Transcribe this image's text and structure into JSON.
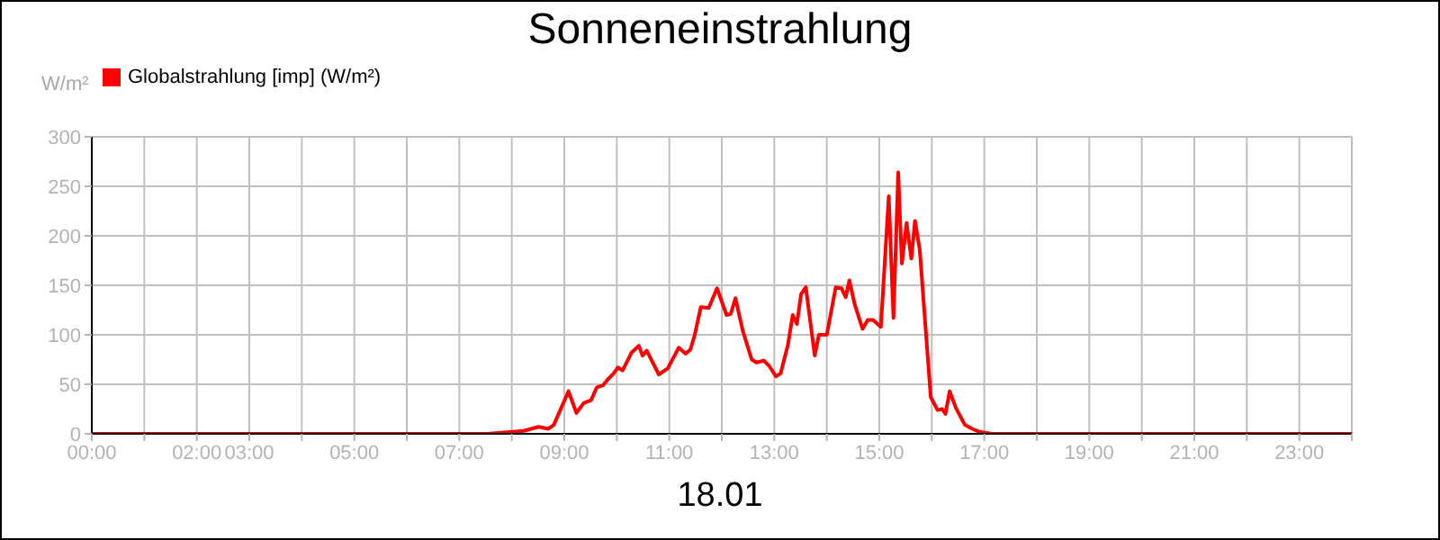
{
  "chart_data": {
    "type": "line",
    "title": "Sonneneinstrahlung",
    "xlabel": "18.01",
    "ylabel": "W/m²",
    "x": [
      0,
      7.54,
      8.23,
      8.51,
      8.69,
      8.8,
      9.08,
      9.23,
      9.37,
      9.51,
      9.62,
      9.74,
      9.83,
      9.94,
      10.02,
      10.11,
      10.28,
      10.42,
      10.49,
      10.57,
      10.8,
      10.97,
      11.18,
      11.31,
      11.4,
      11.48,
      11.6,
      11.75,
      11.91,
      12.09,
      12.17,
      12.26,
      12.4,
      12.57,
      12.66,
      12.8,
      12.91,
      13.03,
      13.12,
      13.26,
      13.35,
      13.43,
      13.51,
      13.6,
      13.77,
      13.85,
      14.0,
      14.17,
      14.28,
      14.36,
      14.43,
      14.53,
      14.68,
      14.78,
      14.88,
      15.03,
      15.18,
      15.27,
      15.36,
      15.43,
      15.52,
      15.61,
      15.68,
      15.77,
      15.98,
      16.11,
      16.2,
      16.26,
      16.34,
      16.46,
      16.63,
      16.77,
      16.91,
      17.14,
      24
    ],
    "series": [
      {
        "name": "Globalstrahlung [imp] (W/m²)",
        "color": "#ff0000",
        "values": [
          0,
          0,
          3,
          7,
          5,
          9,
          43,
          21,
          31,
          34,
          47,
          49,
          55,
          61,
          67,
          64,
          82,
          89,
          79,
          84,
          60,
          66,
          87,
          81,
          85,
          99,
          128,
          127,
          147,
          120,
          121,
          137,
          104,
          75,
          72,
          74,
          68,
          58,
          61,
          90,
          120,
          111,
          141,
          148,
          79,
          100,
          100,
          148,
          147,
          138,
          155,
          131,
          106,
          115,
          115,
          108,
          240,
          117,
          264,
          172,
          213,
          177,
          215,
          186,
          37,
          24,
          25,
          20,
          43,
          26,
          9,
          5,
          2,
          0,
          0
        ]
      }
    ],
    "xlim": [
      0,
      24
    ],
    "xticks": [
      {
        "value": 0,
        "label": "00:00"
      },
      {
        "value": 1,
        "label": null
      },
      {
        "value": 2,
        "label": "02:00"
      },
      {
        "value": 3,
        "label": "03:00"
      },
      {
        "value": 4,
        "label": null
      },
      {
        "value": 5,
        "label": "05:00"
      },
      {
        "value": 6,
        "label": null
      },
      {
        "value": 7,
        "label": "07:00"
      },
      {
        "value": 8,
        "label": null
      },
      {
        "value": 9,
        "label": "09:00"
      },
      {
        "value": 10,
        "label": null
      },
      {
        "value": 11,
        "label": "11:00"
      },
      {
        "value": 12,
        "label": null
      },
      {
        "value": 13,
        "label": "13:00"
      },
      {
        "value": 14,
        "label": null
      },
      {
        "value": 15,
        "label": "15:00"
      },
      {
        "value": 16,
        "label": null
      },
      {
        "value": 17,
        "label": "17:00"
      },
      {
        "value": 18,
        "label": null
      },
      {
        "value": 19,
        "label": "19:00"
      },
      {
        "value": 20,
        "label": null
      },
      {
        "value": 21,
        "label": "21:00"
      },
      {
        "value": 22,
        "label": null
      },
      {
        "value": 23,
        "label": "23:00"
      },
      {
        "value": 24,
        "label": null
      }
    ],
    "ylim": [
      0,
      300
    ],
    "yticks": [
      0,
      50,
      100,
      150,
      200,
      250,
      300
    ],
    "grid": true,
    "legend": "top left",
    "marker": "none",
    "line_style": "solid"
  }
}
